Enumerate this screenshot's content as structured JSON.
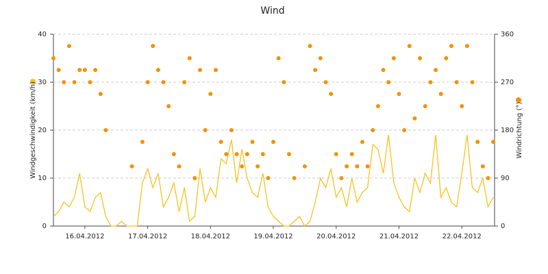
{
  "chart_data": {
    "type": "line-scatter",
    "title": "Wind",
    "x_unit": "hours",
    "xlim": [
      0,
      168.5
    ],
    "xticks": [
      {
        "value": 12,
        "label": "16.04.2012"
      },
      {
        "value": 36,
        "label": "17.04.2012"
      },
      {
        "value": 60,
        "label": "18.04.2012"
      },
      {
        "value": 84,
        "label": "19.04.2012"
      },
      {
        "value": 108,
        "label": "20.04.2012"
      },
      {
        "value": 132,
        "label": "21.04.2012"
      },
      {
        "value": 156,
        "label": "22.04.2012"
      }
    ],
    "ylabel": "Windgeschwindigkeit (km/h)",
    "ylim": [
      0,
      40
    ],
    "yticks": [
      0,
      10,
      20,
      30,
      40
    ],
    "y2label": "Windrichtung (°)",
    "y2lim": [
      0,
      360
    ],
    "y2ticks": [
      0,
      90,
      180,
      270,
      360
    ],
    "grid": true,
    "x": [
      0,
      2,
      4,
      6,
      8,
      10,
      12,
      14,
      16,
      18,
      20,
      22,
      24,
      26,
      28,
      30,
      32,
      34,
      36,
      38,
      40,
      42,
      44,
      46,
      48,
      50,
      52,
      54,
      56,
      58,
      60,
      62,
      64,
      66,
      68,
      70,
      72,
      74,
      76,
      78,
      80,
      82,
      84,
      86,
      88,
      90,
      92,
      94,
      96,
      98,
      100,
      102,
      104,
      106,
      108,
      110,
      112,
      114,
      116,
      118,
      120,
      122,
      124,
      126,
      128,
      130,
      132,
      134,
      136,
      138,
      140,
      142,
      144,
      146,
      148,
      150,
      152,
      154,
      156,
      158,
      160,
      162,
      164,
      166,
      168
    ],
    "series": [
      {
        "name": "Windgeschwindigkeit",
        "kind": "line",
        "axis": "y",
        "color": "#f7c21e",
        "values": [
          2,
          3,
          5,
          4,
          6,
          11,
          4,
          3,
          6,
          7,
          2,
          0,
          0,
          1,
          0,
          0,
          0,
          9,
          12,
          8,
          11,
          4,
          6,
          9,
          3,
          8,
          1,
          2,
          12,
          5,
          8,
          6,
          14,
          13,
          18,
          9,
          16,
          10,
          7,
          6,
          11,
          4,
          2,
          1,
          0,
          0,
          1,
          2,
          0,
          1,
          5,
          10,
          8,
          12,
          6,
          8,
          4,
          10,
          5,
          7,
          8,
          17,
          16,
          11,
          19,
          9,
          6,
          4,
          3,
          10,
          7,
          11,
          9,
          19,
          6,
          8,
          5,
          4,
          11,
          19,
          8,
          7,
          10,
          4,
          6
        ]
      },
      {
        "name": "Windrichtung",
        "kind": "scatter",
        "axis": "y2",
        "color": "#f39200",
        "values": [
          315,
          293,
          270,
          338,
          270,
          293,
          293,
          270,
          293,
          248,
          180,
          null,
          null,
          null,
          null,
          112,
          null,
          158,
          270,
          338,
          293,
          270,
          225,
          135,
          112,
          270,
          315,
          90,
          293,
          180,
          248,
          293,
          158,
          135,
          180,
          135,
          112,
          135,
          158,
          112,
          135,
          90,
          158,
          315,
          270,
          135,
          90,
          null,
          112,
          338,
          293,
          315,
          270,
          248,
          135,
          90,
          112,
          135,
          112,
          158,
          112,
          180,
          225,
          293,
          270,
          315,
          248,
          180,
          338,
          202,
          315,
          225,
          270,
          293,
          248,
          315,
          338,
          270,
          225,
          338,
          270,
          158,
          112,
          90,
          158
        ]
      }
    ]
  }
}
